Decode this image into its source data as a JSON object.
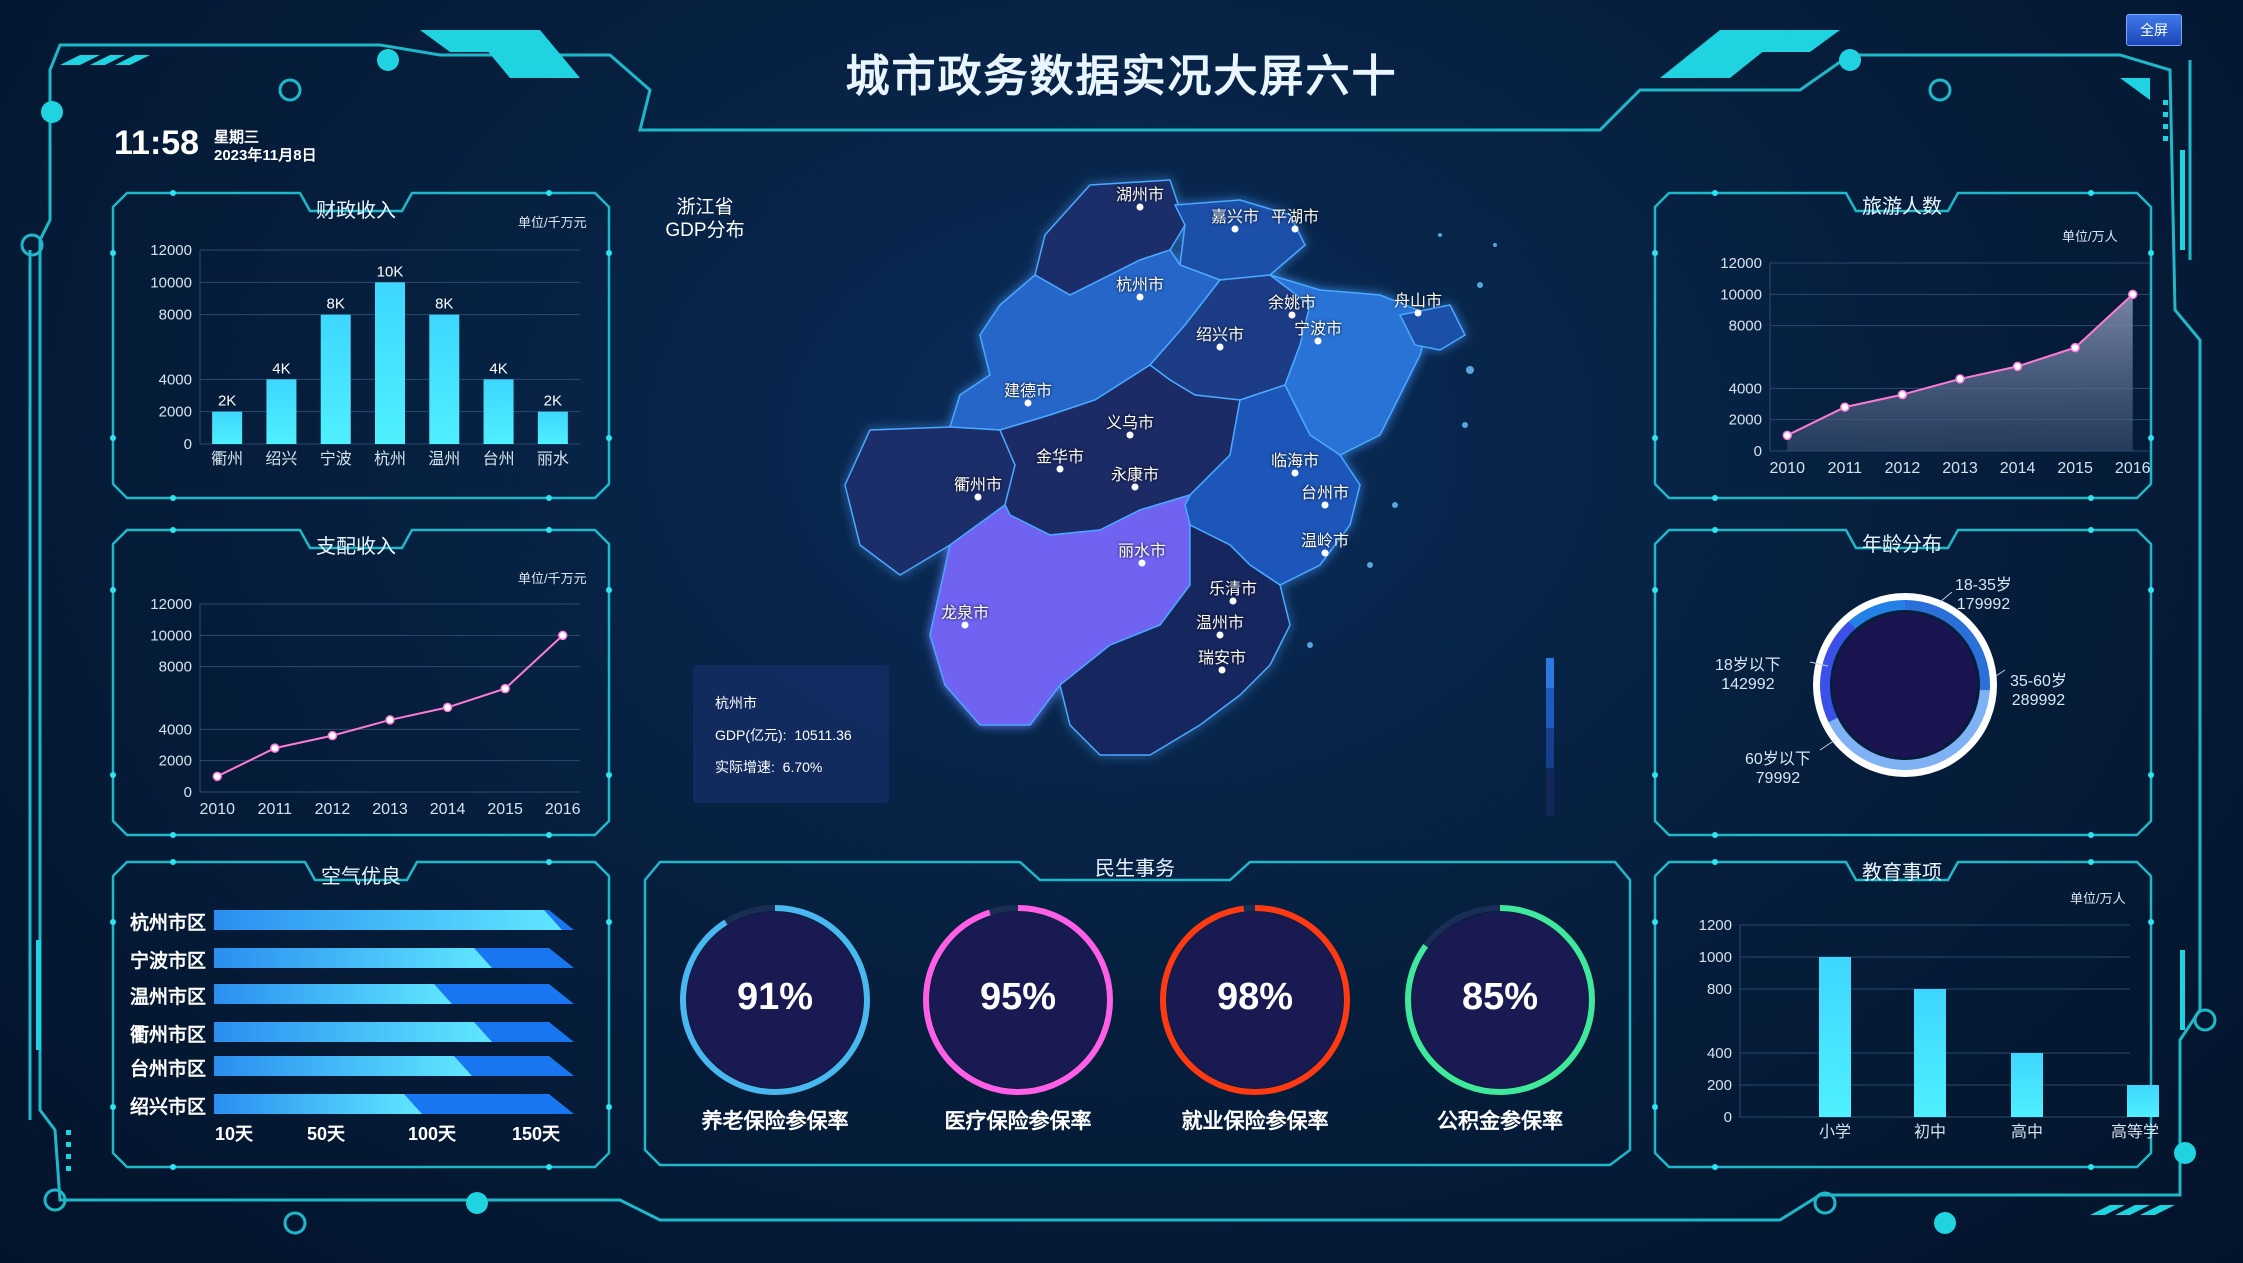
{
  "header": {
    "title": "城市政务数据实况大屏六十",
    "fullscreen_label": "全屏",
    "time": "11:58",
    "weekday": "星期三",
    "date": "2023年11月8日"
  },
  "colors": {
    "cyan": "#2fe3f0",
    "frame": "#1fb8c9",
    "bar": "#3ee0ff",
    "line": "#ff7ad8",
    "map_dark": "#1c2d6a",
    "map_mid": "#1d5ab6",
    "map_light": "#2b73d6",
    "map_highlight": "#6f63f2"
  },
  "fiscal_revenue": {
    "title": "财政收入",
    "unit": "单位/千万元",
    "chart_data": {
      "type": "bar",
      "categories": [
        "衢州",
        "绍兴",
        "宁波",
        "杭州",
        "温州",
        "台州",
        "丽水"
      ],
      "values": [
        2000,
        4000,
        8000,
        10000,
        8000,
        4000,
        2000
      ],
      "data_labels": [
        "2K",
        "4K",
        "8K",
        "10K",
        "8K",
        "4K",
        "2K"
      ],
      "y_ticks": [
        "0",
        "2000",
        "4000",
        "8000",
        "10000",
        "12000"
      ],
      "ylim": [
        0,
        12000
      ]
    }
  },
  "expenditure": {
    "title": "支配收入",
    "unit": "单位/千万元",
    "chart_data": {
      "type": "line",
      "x": [
        "2010",
        "2011",
        "2012",
        "2013",
        "2014",
        "2015",
        "2016"
      ],
      "values": [
        1000,
        2800,
        3600,
        4600,
        5400,
        6600,
        10000
      ],
      "y_ticks": [
        "0",
        "2000",
        "4000",
        "8000",
        "10000",
        "12000"
      ],
      "ylim": [
        0,
        12000
      ]
    }
  },
  "air_quality": {
    "title": "空气优良",
    "chart_data": {
      "type": "bar",
      "orientation": "horizontal",
      "categories": [
        "杭州市区",
        "宁波市区",
        "温州市区",
        "衢州市区",
        "台州市区",
        "绍兴市区"
      ],
      "values": [
        165,
        130,
        110,
        130,
        120,
        95
      ],
      "x_ticks": [
        "10天",
        "50天",
        "100天",
        "150天"
      ],
      "xlim": [
        0,
        180
      ]
    }
  },
  "map": {
    "title_line1": "浙江省",
    "title_line2": "GDP分布",
    "cities": [
      "湖州市",
      "嘉兴市",
      "平湖市",
      "杭州市",
      "舟山市",
      "余姚市",
      "绍兴市",
      "宁波市",
      "建德市",
      "义乌市",
      "金华市",
      "衢州市",
      "永康市",
      "临海市",
      "台州市",
      "丽水市",
      "温岭市",
      "乐清市",
      "龙泉市",
      "温州市",
      "瑞安市"
    ],
    "tooltip": {
      "city": "杭州市",
      "gdp_label": "GDP(亿元):",
      "gdp_value": "10511.36",
      "growth_label": "实际增速:",
      "growth_value": "6.70%"
    }
  },
  "livelihood": {
    "title": "民生事务",
    "gauges": [
      {
        "label": "养老保险参保率",
        "value": "91%",
        "percent": 91,
        "color": "#4ab8f0"
      },
      {
        "label": "医疗保险参保率",
        "value": "95%",
        "percent": 95,
        "color": "#ff5fe6"
      },
      {
        "label": "就业保险参保率",
        "value": "98%",
        "percent": 98,
        "color": "#ff3a12"
      },
      {
        "label": "公积金参保率",
        "value": "85%",
        "percent": 85,
        "color": "#3fe89a"
      }
    ]
  },
  "tourism": {
    "title": "旅游人数",
    "unit": "单位/万人",
    "chart_data": {
      "type": "area",
      "x": [
        "2010",
        "2011",
        "2012",
        "2013",
        "2014",
        "2015",
        "2016"
      ],
      "values": [
        1000,
        2800,
        3600,
        4600,
        5400,
        6600,
        10000
      ],
      "y_ticks": [
        "0",
        "2000",
        "4000",
        "8000",
        "10000",
        "12000"
      ],
      "ylim": [
        0,
        12000
      ]
    }
  },
  "age_distribution": {
    "title": "年龄分布",
    "chart_data": {
      "type": "pie",
      "categories": [
        "18-35岁",
        "35-60岁",
        "18岁以下",
        "60岁以下"
      ],
      "values": [
        179992,
        289992,
        142992,
        79992
      ]
    }
  },
  "education": {
    "title": "教育事项",
    "unit": "单位/万人",
    "chart_data": {
      "type": "bar",
      "categories": [
        "小学",
        "初中",
        "高中",
        "高等学院"
      ],
      "values": [
        1000,
        800,
        400,
        200
      ],
      "y_ticks": [
        "0",
        "200",
        "400",
        "800",
        "1000",
        "1200"
      ],
      "ylim": [
        0,
        1200
      ]
    }
  }
}
